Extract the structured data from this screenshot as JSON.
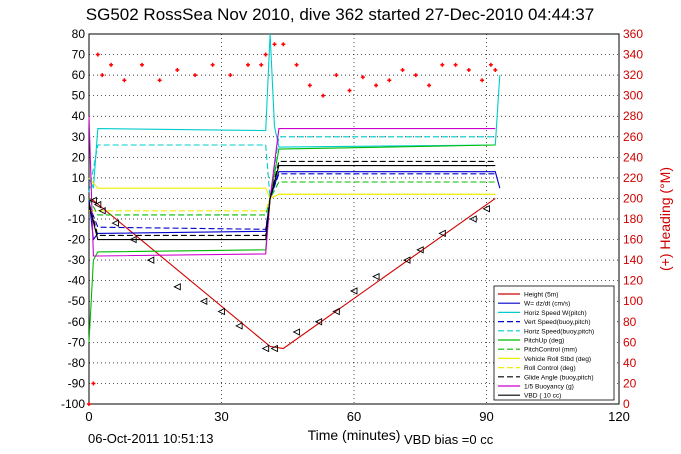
{
  "chart_data": {
    "type": "line",
    "title": "SG502 RossSea Nov 2010, dive 362 started 27-Dec-2010 04:44:37",
    "xlabel": "Time (minutes)",
    "ylabel_right": "(+) Heading (°M)",
    "xlim": [
      0,
      120
    ],
    "ylim": [
      -100,
      80
    ],
    "ylim_right": [
      0,
      360
    ],
    "x_ticks": [
      "0",
      "30",
      "60",
      "90",
      "120"
    ],
    "y_ticks": [
      "-100",
      "-90",
      "-80",
      "-70",
      "-60",
      "-50",
      "-40",
      "-30",
      "-20",
      "-10",
      "0",
      "10",
      "20",
      "30",
      "40",
      "50",
      "60",
      "70",
      "80"
    ],
    "y_ticks_right": [
      "0",
      "20",
      "40",
      "60",
      "80",
      "100",
      "120",
      "140",
      "160",
      "180",
      "200",
      "220",
      "240",
      "260",
      "280",
      "300",
      "320",
      "340",
      "360"
    ],
    "grid": true,
    "legend_position": "bottom-right",
    "footer_date": "06-Oct-2011 10:51:13",
    "footer_note": "VBD bias =0 cc",
    "legend": [
      {
        "label": "Height (5m)",
        "color": "#d00000",
        "dash": "solid"
      },
      {
        "label": "W= dz/dt (cm/s)",
        "color": "#0000cc",
        "dash": "solid"
      },
      {
        "label": "Horiz Speed W(pitch)",
        "color": "#00cccc",
        "dash": "solid"
      },
      {
        "label": "Vert Speed(buoy,pitch)",
        "color": "#0000cc",
        "dash": "dashed"
      },
      {
        "label": "Horiz Speed(buoy,pitch)",
        "color": "#00cccc",
        "dash": "dashed"
      },
      {
        "label": "PitchUp (deg)",
        "color": "#00bb00",
        "dash": "solid"
      },
      {
        "label": "PitchControl (mm)",
        "color": "#00bb00",
        "dash": "dashed"
      },
      {
        "label": "Vehicle Roll Stbd (deg)",
        "color": "#eeee00",
        "dash": "solid"
      },
      {
        "label": "Roll Control (deg)",
        "color": "#eeee00",
        "dash": "dashed"
      },
      {
        "label": "Glide Angle (buoy,pitch)",
        "color": "#000000",
        "dash": "dashed"
      },
      {
        "label": "1/5 Buoyancy (g)",
        "color": "#cc00cc",
        "dash": "solid"
      },
      {
        "label": "VBD ( 10 cc)",
        "color": "#000000",
        "dash": "solid"
      }
    ],
    "series": [
      {
        "name": "Height (5m)",
        "color": "#d00000",
        "x": [
          0,
          1,
          41,
          44,
          92
        ],
        "y": [
          0,
          -1,
          -72,
          -73,
          0
        ]
      },
      {
        "name": "W= dz/dt (cm/s)",
        "color": "#0000cc",
        "x": [
          0,
          1,
          2,
          40,
          41,
          43,
          92,
          93
        ],
        "y": [
          0,
          -20,
          -17,
          -16,
          0,
          13,
          13,
          5
        ]
      },
      {
        "name": "Horiz Speed W(pitch)",
        "color": "#00cccc",
        "x": [
          0,
          1,
          2,
          40,
          41,
          42,
          43,
          92,
          93
        ],
        "y": [
          10,
          5,
          34,
          33,
          80,
          35,
          25,
          26,
          60
        ]
      },
      {
        "name": "Vert Speed(buoy,pitch)",
        "color": "#0000cc",
        "x": [
          0,
          2,
          40,
          41,
          43,
          92
        ],
        "y": [
          -3,
          -14,
          -15,
          0,
          12,
          12
        ]
      },
      {
        "name": "Horiz Speed(buoy,pitch)",
        "color": "#00cccc",
        "x": [
          0,
          2,
          40,
          41,
          43,
          92
        ],
        "y": [
          3,
          26,
          26,
          0,
          30,
          30
        ]
      },
      {
        "name": "PitchUp (deg)",
        "color": "#00bb00",
        "x": [
          0,
          1,
          2,
          40,
          41,
          43,
          92
        ],
        "y": [
          -70,
          -30,
          -26,
          -25,
          0,
          24,
          26
        ]
      },
      {
        "name": "PitchControl (mm)",
        "color": "#00bb00",
        "x": [
          0,
          2,
          40,
          41,
          43,
          92
        ],
        "y": [
          0,
          -8,
          -8,
          0,
          8,
          8
        ]
      },
      {
        "name": "Vehicle Roll Stbd (deg)",
        "color": "#eeee00",
        "x": [
          0,
          2,
          40,
          41,
          43,
          92
        ],
        "y": [
          10,
          5,
          5,
          0,
          2,
          2
        ]
      },
      {
        "name": "Roll Control (deg)",
        "color": "#eeee00",
        "x": [
          0,
          2,
          40,
          41,
          43,
          92
        ],
        "y": [
          -6,
          -6,
          -6,
          0,
          2,
          2
        ]
      },
      {
        "name": "Glide Angle (buoy,pitch)",
        "color": "#000000",
        "x": [
          0,
          2,
          40,
          41,
          43,
          92
        ],
        "y": [
          -2,
          -18,
          -18,
          0,
          18,
          18
        ]
      },
      {
        "name": "1/5 Buoyancy (g)",
        "color": "#cc00cc",
        "x": [
          0,
          1,
          2,
          40,
          41,
          43,
          92
        ],
        "y": [
          40,
          -28,
          -28,
          -27,
          0,
          34,
          34
        ]
      },
      {
        "name": "VBD ( 10 cc)",
        "color": "#000000",
        "x": [
          0,
          2,
          40,
          41,
          43,
          92
        ],
        "y": [
          -3,
          -20,
          -20,
          0,
          16,
          16
        ]
      }
    ],
    "heading_series": {
      "name": "(+) Heading (°M)",
      "color": "#ff0000",
      "x": [
        0,
        1,
        2,
        3,
        5,
        8,
        12,
        16,
        20,
        24,
        28,
        32,
        36,
        39,
        40,
        42,
        44,
        47,
        50,
        53,
        56,
        59,
        62,
        65,
        68,
        71,
        74,
        77,
        80,
        83,
        86,
        89,
        91,
        92
      ],
      "y": [
        0,
        20,
        340,
        320,
        330,
        315,
        330,
        315,
        325,
        320,
        330,
        320,
        330,
        330,
        340,
        350,
        350,
        330,
        310,
        300,
        320,
        305,
        318,
        310,
        315,
        325,
        320,
        310,
        330,
        330,
        325,
        315,
        330,
        325
      ]
    },
    "markers": {
      "x": [
        1,
        2,
        3,
        6,
        10,
        14,
        20,
        26,
        30,
        34,
        40,
        42,
        47,
        52,
        56,
        60,
        65,
        72,
        75,
        80,
        87,
        90
      ],
      "y": [
        -1,
        -3,
        -6,
        -12,
        -20,
        -30,
        -43,
        -50,
        -55,
        -62,
        -73,
        -73,
        -65,
        -60,
        -55,
        -45,
        -38,
        -30,
        -25,
        -17,
        -10,
        -5
      ]
    }
  }
}
